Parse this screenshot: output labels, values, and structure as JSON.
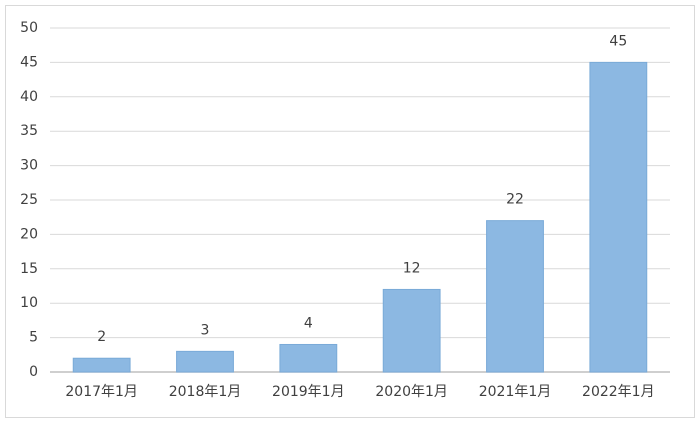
{
  "chart_data": {
    "type": "bar",
    "categories": [
      "2017年1月",
      "2018年1月",
      "2019年1月",
      "2020年1月",
      "2021年1月",
      "2022年1月"
    ],
    "values": [
      2,
      3,
      4,
      12,
      22,
      45
    ],
    "color": "#8cb8e2",
    "ylim": [
      0,
      50
    ],
    "yticks": [
      0,
      5,
      10,
      15,
      20,
      25,
      30,
      35,
      40,
      45,
      50
    ],
    "grid": true
  }
}
